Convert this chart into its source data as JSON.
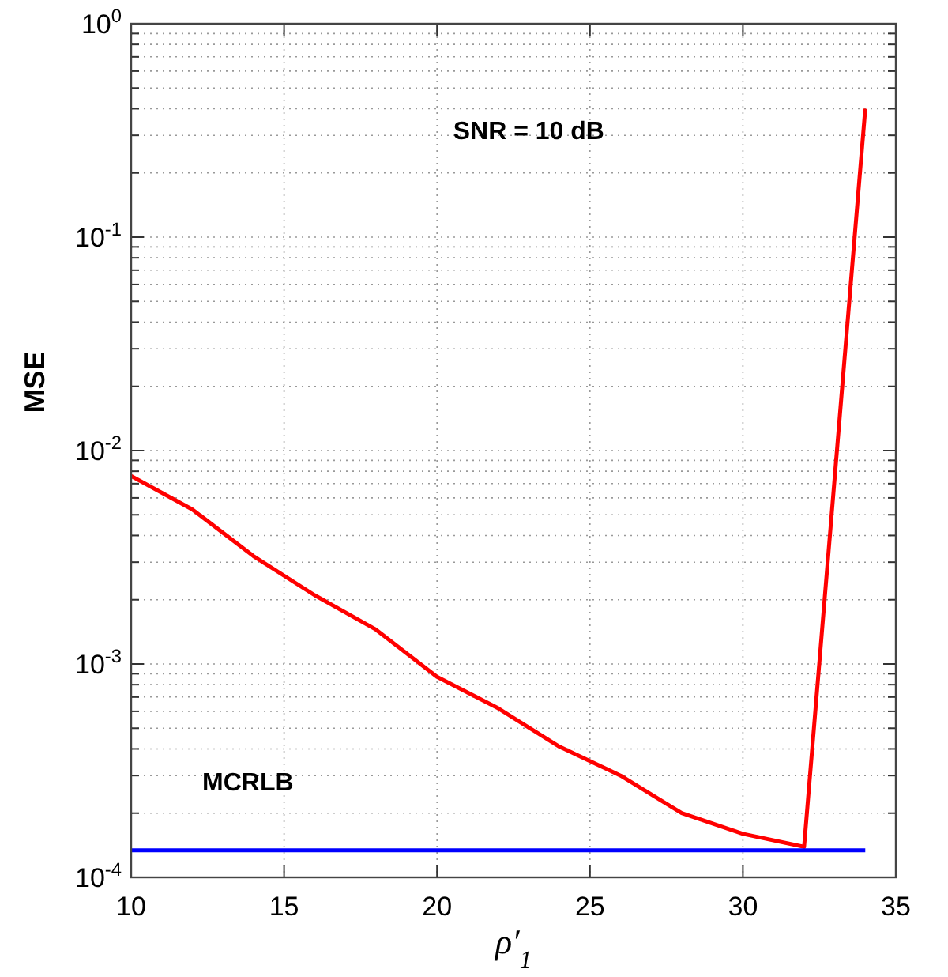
{
  "chart_data": {
    "type": "line",
    "xlabel": "ρ′$_{1}$",
    "ylabel": "MSE",
    "log": "y",
    "grid": true,
    "line_style": "solid",
    "marker": "none",
    "x": [
      10,
      12,
      14,
      16,
      18,
      20,
      22,
      24,
      26,
      28,
      30,
      32,
      34
    ],
    "xlim": [
      10,
      35
    ],
    "xticks": [
      10,
      15,
      20,
      25,
      30,
      35
    ],
    "ylim": [
      0.0001,
      1
    ],
    "yticks": [
      {
        "value": 0.0001,
        "label": "10$^{-4}$"
      },
      {
        "value": 0.0002,
        "label": null
      },
      {
        "value": 0.0003,
        "label": null
      },
      {
        "value": 0.0004,
        "label": null
      },
      {
        "value": 0.0005,
        "label": null
      },
      {
        "value": 0.0006,
        "label": null
      },
      {
        "value": 0.0007,
        "label": null
      },
      {
        "value": 0.0008,
        "label": null
      },
      {
        "value": 0.0009,
        "label": null
      },
      {
        "value": 0.001,
        "label": "10$^{-3}$"
      },
      {
        "value": 0.002,
        "label": null
      },
      {
        "value": 0.003,
        "label": null
      },
      {
        "value": 0.004,
        "label": null
      },
      {
        "value": 0.005,
        "label": null
      },
      {
        "value": 0.006,
        "label": null
      },
      {
        "value": 0.007,
        "label": null
      },
      {
        "value": 0.008,
        "label": null
      },
      {
        "value": 0.009,
        "label": null
      },
      {
        "value": 0.01,
        "label": "10$^{-2}$"
      },
      {
        "value": 0.02,
        "label": null
      },
      {
        "value": 0.03,
        "label": null
      },
      {
        "value": 0.04,
        "label": null
      },
      {
        "value": 0.05,
        "label": null
      },
      {
        "value": 0.06,
        "label": null
      },
      {
        "value": 0.07,
        "label": null
      },
      {
        "value": 0.08,
        "label": null
      },
      {
        "value": 0.09,
        "label": null
      },
      {
        "value": 0.1,
        "label": "10$^{-1}$"
      },
      {
        "value": 0.2,
        "label": null
      },
      {
        "value": 0.3,
        "label": null
      },
      {
        "value": 0.4,
        "label": null
      },
      {
        "value": 0.5,
        "label": null
      },
      {
        "value": 0.6,
        "label": null
      },
      {
        "value": 0.7,
        "label": null
      },
      {
        "value": 0.8,
        "label": null
      },
      {
        "value": 0.9,
        "label": null
      },
      {
        "value": 1,
        "label": "10$^{0}$"
      }
    ],
    "annotations": [
      "SNR = 10 dB"
    ],
    "series": [
      {
        "color": "#ff0000",
        "values": [
          0.0076,
          0.0053,
          0.0032,
          0.0021,
          0.00145,
          0.00087,
          0.00062,
          0.00041,
          0.0003,
          0.0002,
          0.00016,
          0.000139,
          0.4
        ]
      },
      {
        "name": "MCRLB",
        "color": "#0000ff",
        "values": [
          0.000134,
          0.000134,
          0.000134,
          0.000134,
          0.000134,
          0.000134,
          0.000134,
          0.000134,
          0.000134,
          0.000134,
          0.000134,
          0.000134,
          0.000134
        ]
      }
    ]
  }
}
